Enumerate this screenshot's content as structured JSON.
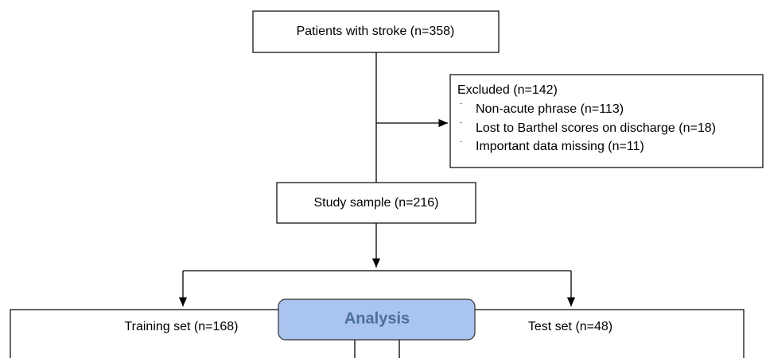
{
  "nodes": [
    {
      "label": "Patients with stroke (n=358)"
    },
    {
      "label": "Excluded (n=142)",
      "items": [
        "Non-acute phrase (n=113)",
        "Lost to Barthel scores on discharge (n=18)",
        "Important  data missing (n=11)"
      ]
    },
    {
      "label": "Study sample (n=216)"
    },
    {
      "label": "Training set (n=168)"
    },
    {
      "label": "Test set (n=48)"
    },
    {
      "label": "Analysis"
    }
  ]
}
